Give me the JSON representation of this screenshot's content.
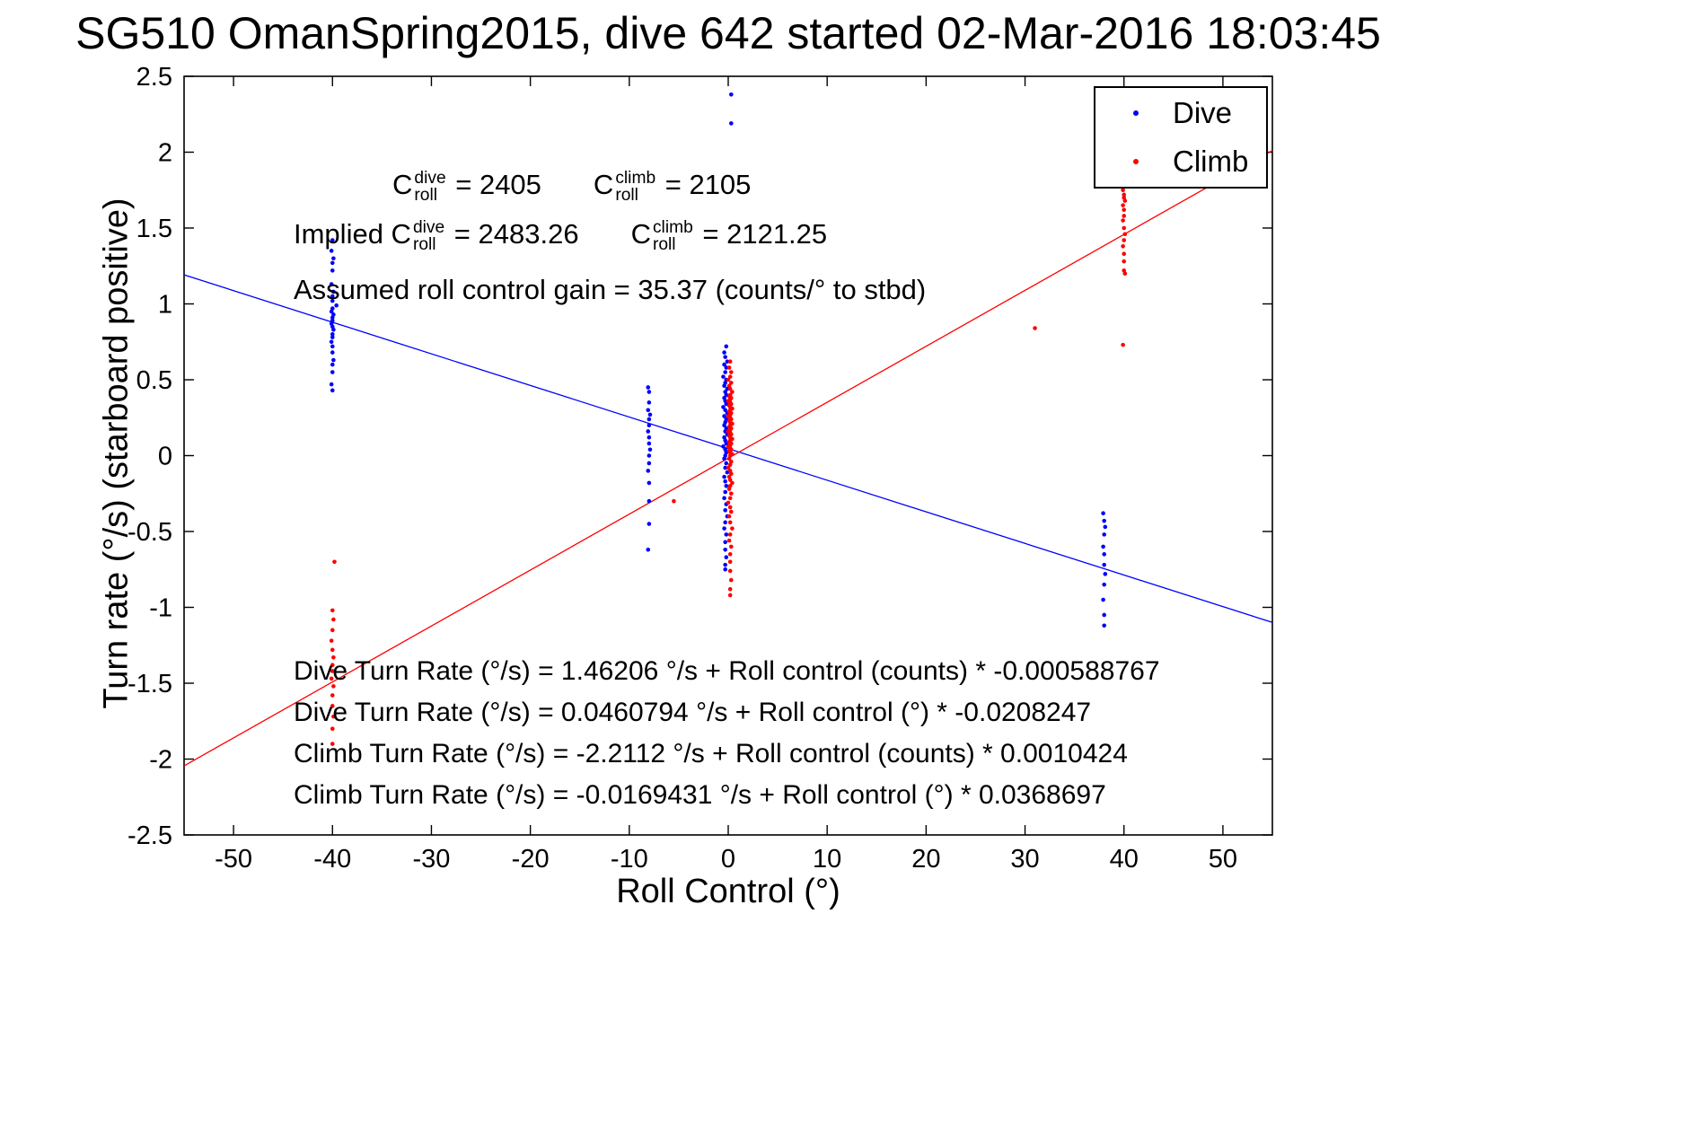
{
  "chart_data": {
    "type": "scatter",
    "title": "SG510 OmanSpring2015, dive 642 started 02-Mar-2016 18:03:45",
    "xlabel": "Roll Control (°)",
    "ylabel": "Turn rate (°/s) (starboard positive)",
    "xlim": [
      -55,
      55
    ],
    "ylim": [
      -2.5,
      2.5
    ],
    "xticks": [
      -50,
      -40,
      -30,
      -20,
      -10,
      0,
      10,
      20,
      30,
      40,
      50
    ],
    "yticks": [
      -2.5,
      -2,
      -1.5,
      -1,
      -0.5,
      0,
      0.5,
      1,
      1.5,
      2,
      2.5
    ],
    "grid": "off",
    "legend_position": "top-right",
    "annotations": {
      "croll": {
        "c1": {
          "base": "C",
          "sup": "dive",
          "sub": "roll",
          "eq": " = 2405"
        },
        "c2": {
          "base": "C",
          "sup": "climb",
          "sub": "roll",
          "eq": " = 2105"
        }
      },
      "implied": {
        "prefix": "Implied ",
        "c1": {
          "base": "C",
          "sup": "dive",
          "sub": "roll",
          "eq": " = 2483.26"
        },
        "c2": {
          "base": "C",
          "sup": "climb",
          "sub": "roll",
          "eq": " = 2121.25"
        }
      },
      "gain": "Assumed roll control gain = 35.37 (counts/° to stbd)",
      "fits": [
        "Dive Turn Rate (°/s) = 1.46206 °/s + Roll control (counts) * -0.000588767",
        "Dive Turn Rate (°/s) = 0.0460794 °/s + Roll control (°) * -0.0208247",
        "Climb Turn Rate (°/s) = -2.2112 °/s + Roll control (counts) * 0.0010424",
        "Climb Turn Rate (°/s) = -0.0169431 °/s + Roll control (°) * 0.0368697"
      ]
    },
    "fit_lines": [
      {
        "name": "dive-fit-line",
        "color": "#0000ff",
        "slope": -0.0208247,
        "intercept": 0.0460794
      },
      {
        "name": "climb-fit-line",
        "color": "#ff0000",
        "slope": 0.0368697,
        "intercept": -0.0169431
      }
    ],
    "series": [
      {
        "name": "Dive",
        "color": "#0000ff",
        "marker": "dot",
        "points": [
          [
            -40.0,
            1.42
          ],
          [
            -40.1,
            1.35
          ],
          [
            -39.9,
            1.3
          ],
          [
            -40.0,
            1.27
          ],
          [
            -40.0,
            1.22
          ],
          [
            -40.1,
            1.13
          ],
          [
            -39.9,
            1.08
          ],
          [
            -40.0,
            1.05
          ],
          [
            -40.0,
            1.02
          ],
          [
            -39.6,
            0.99
          ],
          [
            -40.0,
            0.97
          ],
          [
            -40.1,
            0.95
          ],
          [
            -39.9,
            0.93
          ],
          [
            -40.0,
            0.91
          ],
          [
            -40.0,
            0.89
          ],
          [
            -40.1,
            0.87
          ],
          [
            -40.0,
            0.85
          ],
          [
            -39.9,
            0.83
          ],
          [
            -40.0,
            0.8
          ],
          [
            -40.0,
            0.78
          ],
          [
            -40.1,
            0.75
          ],
          [
            -40.0,
            0.72
          ],
          [
            -40.0,
            0.68
          ],
          [
            -39.9,
            0.63
          ],
          [
            -40.0,
            0.6
          ],
          [
            -40.0,
            0.55
          ],
          [
            -40.1,
            0.47
          ],
          [
            -40.0,
            0.43
          ],
          [
            -8.1,
            0.45
          ],
          [
            -8.0,
            0.42
          ],
          [
            -8.0,
            0.35
          ],
          [
            -8.1,
            0.3
          ],
          [
            -7.9,
            0.27
          ],
          [
            -8.0,
            0.24
          ],
          [
            -8.0,
            0.2
          ],
          [
            -8.1,
            0.16
          ],
          [
            -8.0,
            0.12
          ],
          [
            -8.0,
            0.08
          ],
          [
            -7.9,
            0.04
          ],
          [
            -8.0,
            0.0
          ],
          [
            -8.0,
            -0.05
          ],
          [
            -8.1,
            -0.1
          ],
          [
            -8.0,
            -0.18
          ],
          [
            -8.0,
            -0.3
          ],
          [
            -8.0,
            -0.45
          ],
          [
            -8.1,
            -0.62
          ],
          [
            0.3,
            2.38
          ],
          [
            0.3,
            2.19
          ],
          [
            -0.2,
            0.72
          ],
          [
            -0.4,
            0.68
          ],
          [
            -0.3,
            0.65
          ],
          [
            -0.1,
            0.62
          ],
          [
            -0.4,
            0.6
          ],
          [
            -0.2,
            0.58
          ],
          [
            -0.3,
            0.55
          ],
          [
            -0.5,
            0.52
          ],
          [
            -0.2,
            0.5
          ],
          [
            -0.3,
            0.48
          ],
          [
            -0.4,
            0.46
          ],
          [
            -0.1,
            0.44
          ],
          [
            -0.3,
            0.42
          ],
          [
            -0.2,
            0.4
          ],
          [
            -0.4,
            0.38
          ],
          [
            -0.3,
            0.36
          ],
          [
            -0.2,
            0.34
          ],
          [
            -0.5,
            0.32
          ],
          [
            -0.3,
            0.3
          ],
          [
            -0.1,
            0.28
          ],
          [
            -0.4,
            0.26
          ],
          [
            -0.2,
            0.24
          ],
          [
            -0.3,
            0.22
          ],
          [
            -0.4,
            0.2
          ],
          [
            -0.2,
            0.18
          ],
          [
            -0.3,
            0.16
          ],
          [
            -0.1,
            0.14
          ],
          [
            -0.4,
            0.12
          ],
          [
            -0.3,
            0.1
          ],
          [
            -0.2,
            0.08
          ],
          [
            -0.5,
            0.06
          ],
          [
            -0.3,
            0.04
          ],
          [
            -0.2,
            0.02
          ],
          [
            -0.3,
            0.0
          ],
          [
            -0.4,
            -0.02
          ],
          [
            -0.2,
            -0.05
          ],
          [
            -0.3,
            -0.08
          ],
          [
            -0.1,
            -0.11
          ],
          [
            -0.4,
            -0.14
          ],
          [
            -0.3,
            -0.17
          ],
          [
            -0.2,
            -0.2
          ],
          [
            -0.3,
            -0.24
          ],
          [
            -0.4,
            -0.28
          ],
          [
            -0.2,
            -0.32
          ],
          [
            -0.3,
            -0.36
          ],
          [
            -0.1,
            -0.4
          ],
          [
            -0.3,
            -0.44
          ],
          [
            -0.4,
            -0.48
          ],
          [
            -0.2,
            -0.52
          ],
          [
            -0.3,
            -0.57
          ],
          [
            -0.3,
            -0.62
          ],
          [
            -0.2,
            -0.67
          ],
          [
            -0.3,
            -0.72
          ],
          [
            -0.3,
            -0.75
          ],
          [
            37.9,
            -0.38
          ],
          [
            38.0,
            -0.43
          ],
          [
            38.1,
            -0.47
          ],
          [
            38.0,
            -0.52
          ],
          [
            37.9,
            -0.6
          ],
          [
            38.0,
            -0.65
          ],
          [
            38.0,
            -0.72
          ],
          [
            38.1,
            -0.78
          ],
          [
            38.0,
            -0.85
          ],
          [
            37.9,
            -0.95
          ],
          [
            38.0,
            -1.05
          ],
          [
            38.0,
            -1.12
          ]
        ]
      },
      {
        "name": "Climb",
        "color": "#ff0000",
        "marker": "dot",
        "points": [
          [
            -39.8,
            -0.7
          ],
          [
            -40.0,
            -1.02
          ],
          [
            -39.9,
            -1.08
          ],
          [
            -40.0,
            -1.15
          ],
          [
            -40.1,
            -1.22
          ],
          [
            -40.0,
            -1.28
          ],
          [
            -39.9,
            -1.33
          ],
          [
            -40.0,
            -1.38
          ],
          [
            -40.0,
            -1.42
          ],
          [
            -40.1,
            -1.47
          ],
          [
            -39.9,
            -1.52
          ],
          [
            -40.0,
            -1.58
          ],
          [
            -40.0,
            -1.65
          ],
          [
            -39.9,
            -1.72
          ],
          [
            -40.0,
            -1.8
          ],
          [
            -40.0,
            -1.9
          ],
          [
            -5.5,
            -0.3
          ],
          [
            0.2,
            0.62
          ],
          [
            0.1,
            0.58
          ],
          [
            0.3,
            0.55
          ],
          [
            0.2,
            0.52
          ],
          [
            0.0,
            0.5
          ],
          [
            0.3,
            0.48
          ],
          [
            0.1,
            0.46
          ],
          [
            0.2,
            0.44
          ],
          [
            0.4,
            0.42
          ],
          [
            0.2,
            0.4
          ],
          [
            0.1,
            0.39
          ],
          [
            0.3,
            0.38
          ],
          [
            0.2,
            0.37
          ],
          [
            0.0,
            0.36
          ],
          [
            0.2,
            0.35
          ],
          [
            0.3,
            0.34
          ],
          [
            0.1,
            0.33
          ],
          [
            0.2,
            0.32
          ],
          [
            0.4,
            0.31
          ],
          [
            0.2,
            0.3
          ],
          [
            0.1,
            0.29
          ],
          [
            0.3,
            0.28
          ],
          [
            0.2,
            0.27
          ],
          [
            0.0,
            0.26
          ],
          [
            0.2,
            0.25
          ],
          [
            0.3,
            0.24
          ],
          [
            0.1,
            0.23
          ],
          [
            0.2,
            0.22
          ],
          [
            0.4,
            0.21
          ],
          [
            0.2,
            0.2
          ],
          [
            0.1,
            0.19
          ],
          [
            0.3,
            0.18
          ],
          [
            0.2,
            0.17
          ],
          [
            0.0,
            0.16
          ],
          [
            0.2,
            0.15
          ],
          [
            0.3,
            0.14
          ],
          [
            0.1,
            0.13
          ],
          [
            0.2,
            0.12
          ],
          [
            0.4,
            0.11
          ],
          [
            0.2,
            0.1
          ],
          [
            0.1,
            0.09
          ],
          [
            0.3,
            0.08
          ],
          [
            0.2,
            0.07
          ],
          [
            0.0,
            0.06
          ],
          [
            0.2,
            0.05
          ],
          [
            0.3,
            0.04
          ],
          [
            0.1,
            0.03
          ],
          [
            0.2,
            0.02
          ],
          [
            0.4,
            0.01
          ],
          [
            0.2,
            0.0
          ],
          [
            0.1,
            -0.02
          ],
          [
            0.3,
            -0.04
          ],
          [
            0.2,
            -0.06
          ],
          [
            0.0,
            -0.08
          ],
          [
            0.2,
            -0.1
          ],
          [
            0.3,
            -0.12
          ],
          [
            0.1,
            -0.14
          ],
          [
            0.2,
            -0.16
          ],
          [
            0.4,
            -0.18
          ],
          [
            0.2,
            -0.2
          ],
          [
            0.1,
            -0.22
          ],
          [
            0.3,
            -0.25
          ],
          [
            0.2,
            -0.28
          ],
          [
            0.0,
            -0.31
          ],
          [
            0.2,
            -0.34
          ],
          [
            0.3,
            -0.37
          ],
          [
            0.1,
            -0.4
          ],
          [
            0.2,
            -0.44
          ],
          [
            0.4,
            -0.48
          ],
          [
            0.2,
            -0.52
          ],
          [
            0.1,
            -0.56
          ],
          [
            0.3,
            -0.6
          ],
          [
            0.2,
            -0.65
          ],
          [
            0.2,
            -0.7
          ],
          [
            0.2,
            -0.76
          ],
          [
            0.3,
            -0.82
          ],
          [
            0.2,
            -0.88
          ],
          [
            0.2,
            -0.92
          ],
          [
            31.0,
            0.84
          ],
          [
            39.9,
            0.73
          ],
          [
            40.0,
            1.82
          ],
          [
            40.1,
            1.78
          ],
          [
            39.9,
            1.75
          ],
          [
            40.0,
            1.72
          ],
          [
            40.0,
            1.7
          ],
          [
            40.1,
            1.68
          ],
          [
            39.9,
            1.65
          ],
          [
            40.0,
            1.62
          ],
          [
            40.0,
            1.58
          ],
          [
            39.9,
            1.55
          ],
          [
            40.0,
            1.5
          ],
          [
            40.1,
            1.46
          ],
          [
            40.0,
            1.42
          ],
          [
            39.9,
            1.38
          ],
          [
            40.0,
            1.33
          ],
          [
            40.0,
            1.28
          ],
          [
            40.0,
            1.22
          ],
          [
            40.1,
            1.2
          ]
        ]
      }
    ]
  }
}
